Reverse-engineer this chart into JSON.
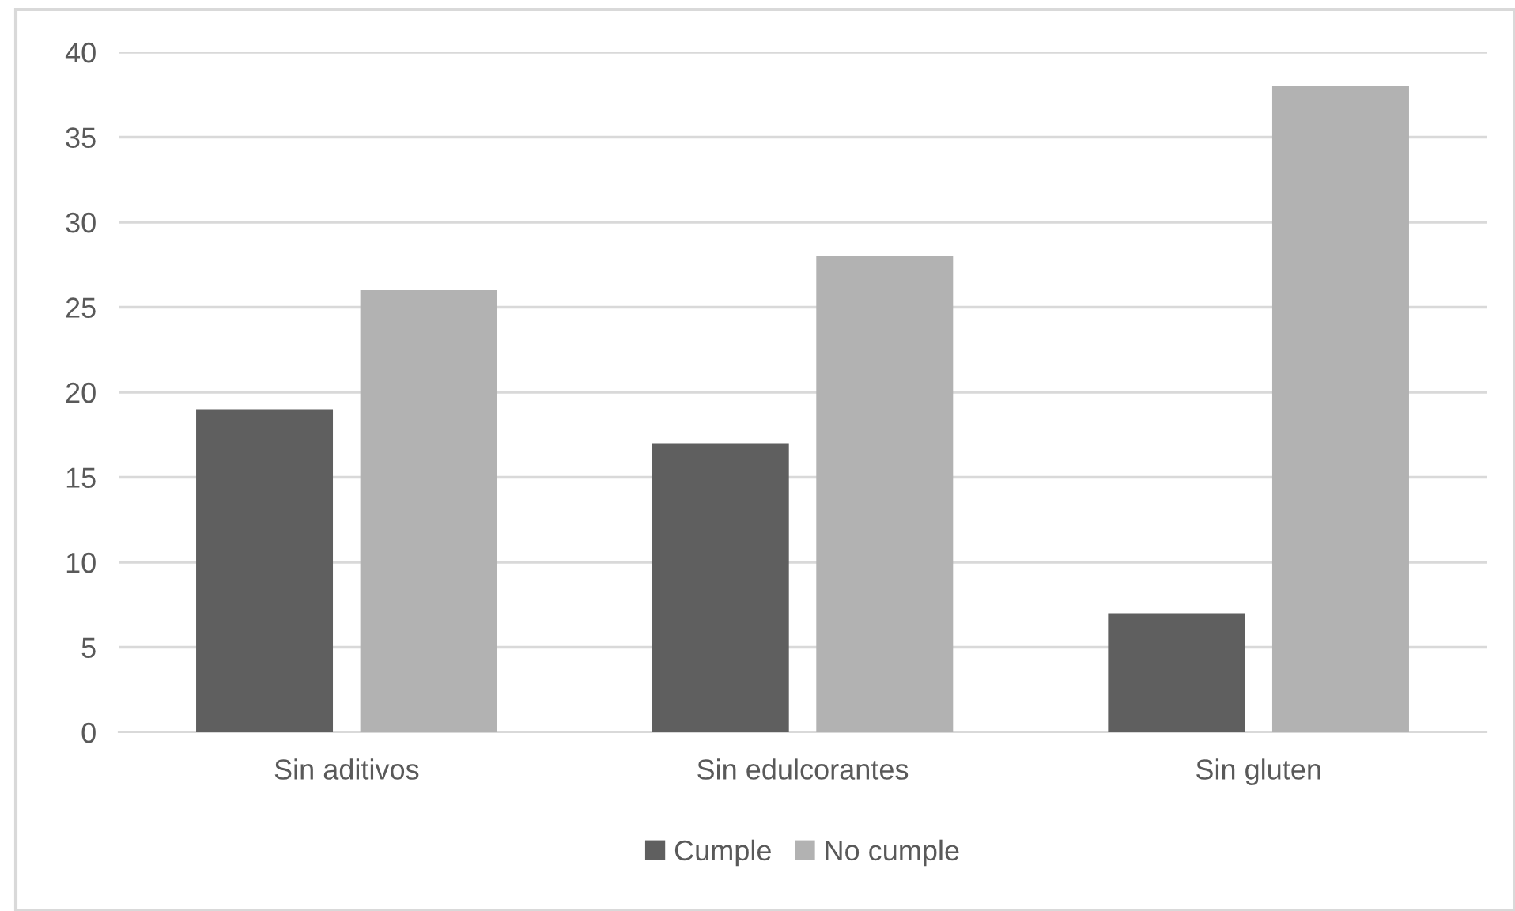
{
  "chart_data": {
    "type": "bar",
    "categories": [
      "Sin aditivos",
      "Sin edulcorantes",
      "Sin gluten"
    ],
    "series": [
      {
        "name": "Cumple",
        "color": "#5f5f5f",
        "values": [
          19,
          17,
          7
        ]
      },
      {
        "name": "No cumple",
        "color": "#b2b2b2",
        "values": [
          26,
          28,
          38
        ]
      }
    ],
    "ylim": [
      0,
      40
    ],
    "yticks": [
      0,
      5,
      10,
      15,
      20,
      25,
      30,
      35,
      40
    ],
    "grid": "y",
    "legend": "bottom"
  }
}
